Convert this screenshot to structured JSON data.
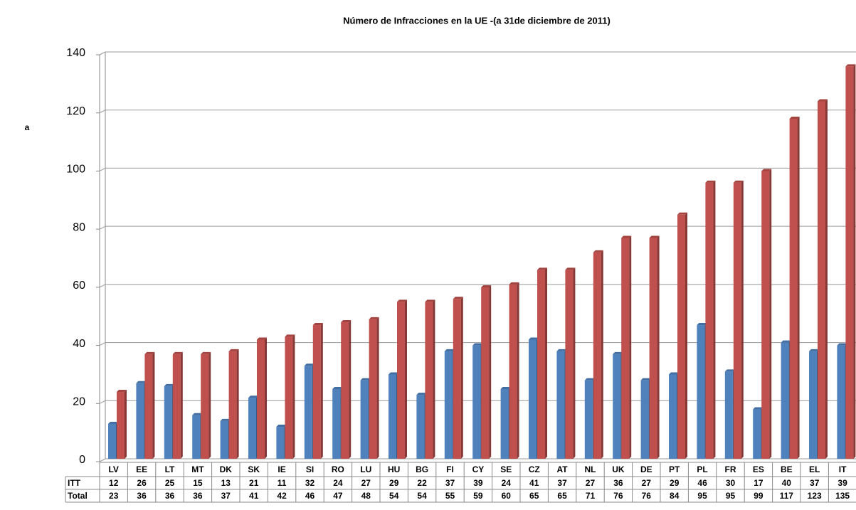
{
  "chart_data": {
    "type": "bar",
    "title": "Número de Infracciones en la UE -(a 31de diciembre de 2011)",
    "annotation": "a",
    "categories": [
      "LV",
      "EE",
      "LT",
      "MT",
      "DK",
      "SK",
      "IE",
      "SI",
      "RO",
      "LU",
      "HU",
      "BG",
      "FI",
      "CY",
      "SE",
      "CZ",
      "AT",
      "NL",
      "UK",
      "DE",
      "PT",
      "PL",
      "FR",
      "ES",
      "BE",
      "EL",
      "IT"
    ],
    "series": [
      {
        "name": "ITT",
        "color": "#4f81bd",
        "values": [
          12,
          26,
          25,
          15,
          13,
          21,
          11,
          32,
          24,
          27,
          29,
          22,
          37,
          39,
          24,
          41,
          37,
          27,
          36,
          27,
          29,
          46,
          30,
          17,
          40,
          37,
          39
        ]
      },
      {
        "name": "Total",
        "color": "#c0504d",
        "values": [
          23,
          36,
          36,
          36,
          37,
          41,
          42,
          46,
          47,
          48,
          54,
          54,
          55,
          59,
          60,
          65,
          65,
          71,
          76,
          76,
          84,
          95,
          95,
          99,
          117,
          123,
          135
        ]
      }
    ],
    "ylim": [
      0,
      140
    ],
    "yticks": [
      0,
      20,
      40,
      60,
      80,
      100,
      120,
      140
    ],
    "grid": true
  }
}
